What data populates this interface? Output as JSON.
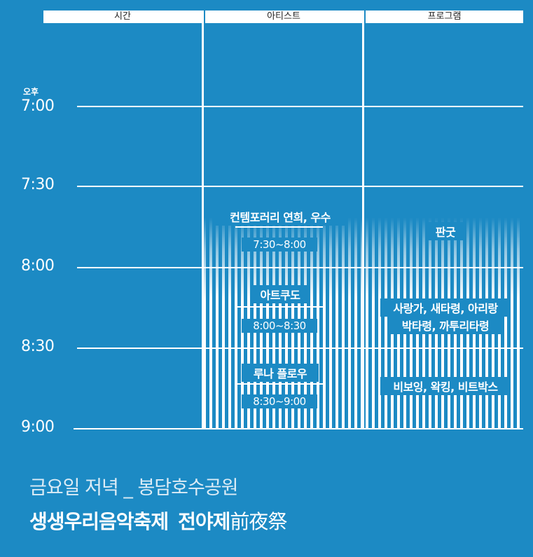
{
  "header": {
    "time": "시간",
    "artist": "아티스트",
    "program": "프로그램"
  },
  "ampm": "오후",
  "times": [
    "7:00",
    "7:30",
    "8:00",
    "8:30",
    "9:00"
  ],
  "artists": [
    {
      "name": "컨템포러리 연희, 우수",
      "time": "7:30~8:00"
    },
    {
      "name": "아트쿠도",
      "time": "8:00~8:30"
    },
    {
      "name": "루나 플로우",
      "time": "8:30~9:00"
    }
  ],
  "programs": [
    {
      "line1": "판굿",
      "line2": ""
    },
    {
      "line1": "사랑가, 새타령, 아리랑",
      "line2": "박타령, 까투리타령"
    },
    {
      "line1": "비보잉, 왁킹, 비트박스",
      "line2": ""
    }
  ],
  "footer": {
    "subtitle": "금요일 저녁 _ 봉담호수공원",
    "title_main": "생생우리음악축제",
    "title_second": "전야제",
    "title_hanja": "前夜祭"
  },
  "colors": {
    "background": "#1c8ac4",
    "foreground": "#ffffff"
  }
}
